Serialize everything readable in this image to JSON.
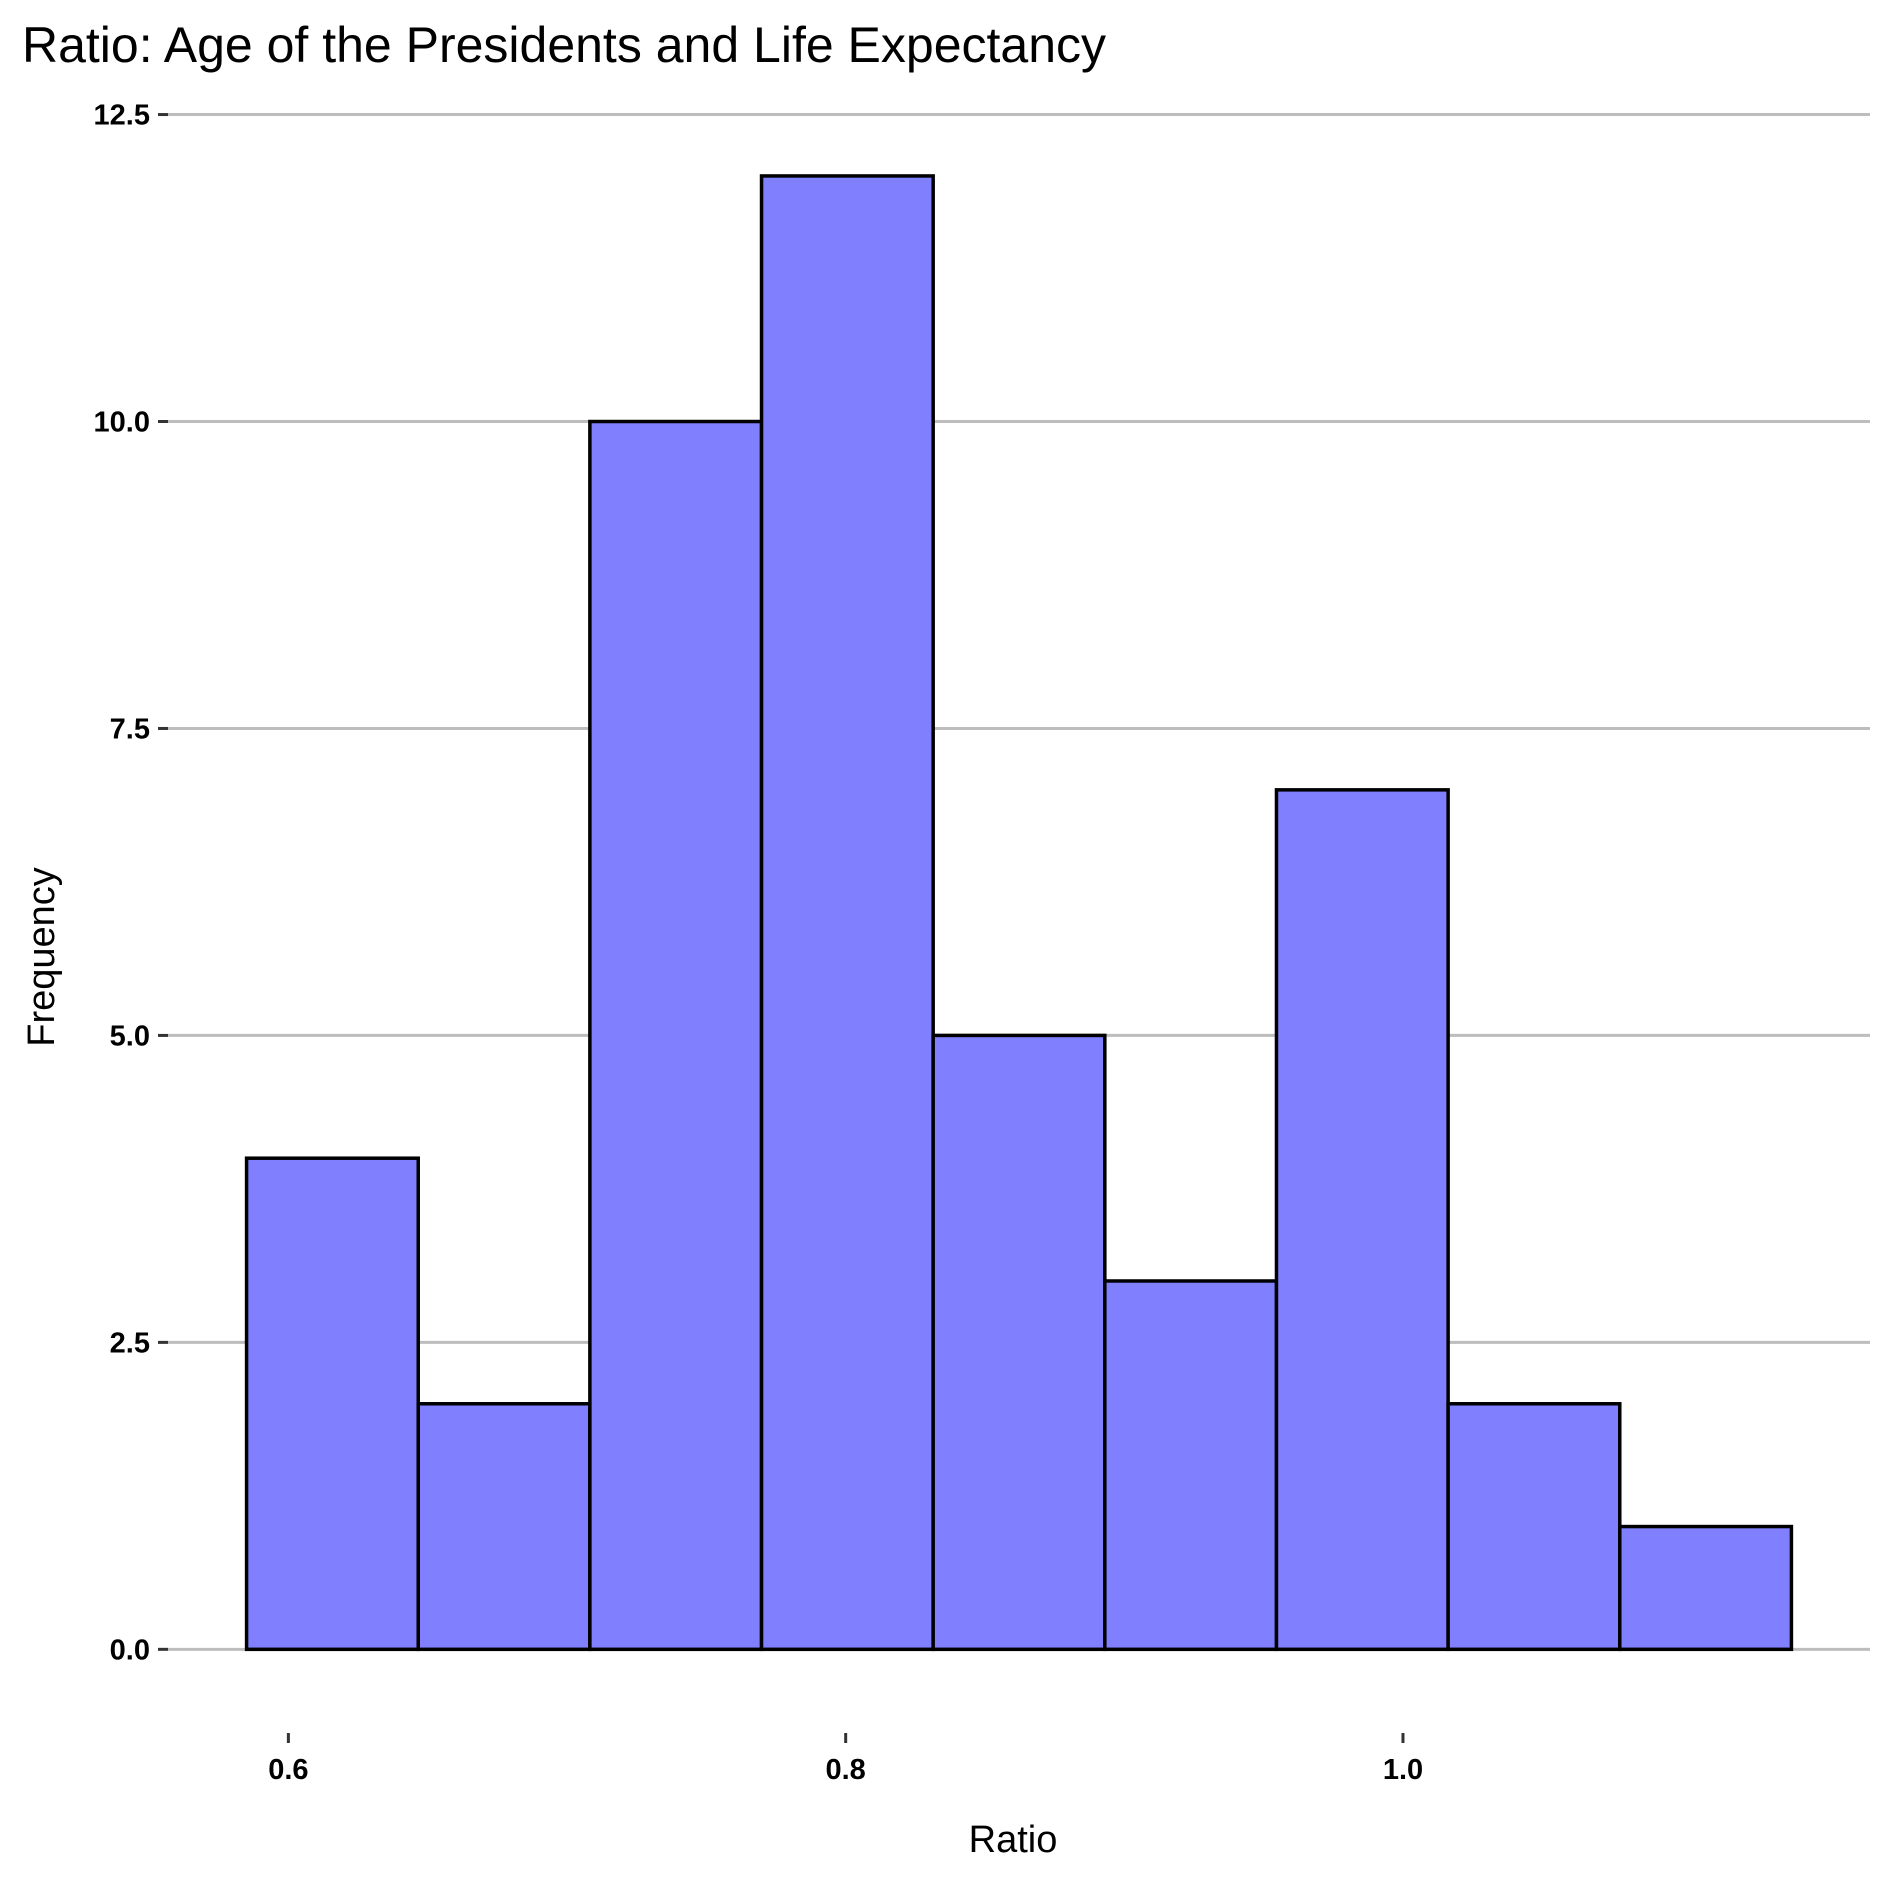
{
  "chart_data": {
    "type": "bar",
    "title": "Ratio: Age of the Presidents and Life Expectancy",
    "xlabel": "Ratio",
    "ylabel": "Frequency",
    "bins": [
      {
        "x0": 0.585,
        "x1": 0.6466,
        "count": 4
      },
      {
        "x0": 0.6466,
        "x1": 0.7082,
        "count": 2
      },
      {
        "x0": 0.7082,
        "x1": 0.7698,
        "count": 10
      },
      {
        "x0": 0.7698,
        "x1": 0.8314,
        "count": 12
      },
      {
        "x0": 0.8314,
        "x1": 0.893,
        "count": 5
      },
      {
        "x0": 0.893,
        "x1": 0.9546,
        "count": 3
      },
      {
        "x0": 0.9546,
        "x1": 1.0162,
        "count": 7
      },
      {
        "x0": 1.0162,
        "x1": 1.0778,
        "count": 2
      },
      {
        "x0": 1.0778,
        "x1": 1.1394,
        "count": 1
      }
    ],
    "xlim": [
      0.5568,
      1.1676
    ],
    "ylim": [
      -0.6,
      12.7
    ],
    "x_ticks": [
      0.6,
      0.8,
      1.0
    ],
    "x_tick_labels": [
      "0.6",
      "0.8",
      "1.0"
    ],
    "y_ticks": [
      0,
      2.5,
      5,
      7.5,
      10,
      12.5
    ],
    "y_tick_labels": [
      "0.0",
      "2.5",
      "5.0",
      "7.5",
      "10.0",
      "12.5"
    ],
    "grid": "horizontal",
    "legend": "none",
    "colors": {
      "bar_fill": "#8080ff",
      "bar_edge": "#000000",
      "grid": "#bdbdbd",
      "background": "#ffffff"
    }
  }
}
